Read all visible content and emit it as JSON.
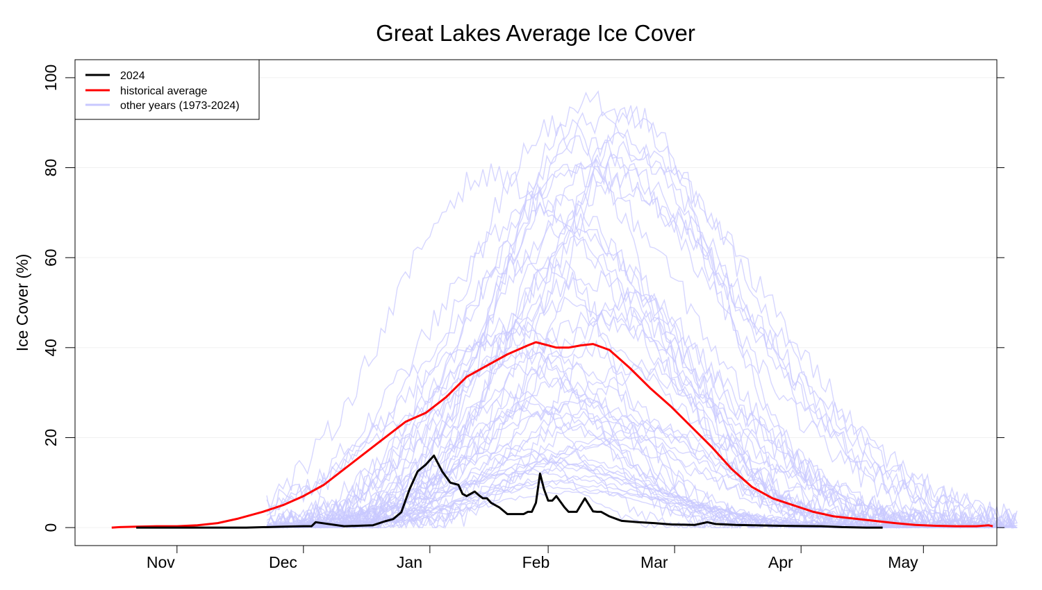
{
  "chart_data": {
    "type": "line",
    "title": "Great Lakes Average Ice Cover",
    "xlabel": "",
    "ylabel": "Ice Cover (%)",
    "xlim": [
      "Oct 20",
      "Jun 2"
    ],
    "ylim": [
      -4,
      104
    ],
    "yticks": [
      0,
      20,
      40,
      60,
      80,
      100
    ],
    "x_tick_labels": [
      "Nov",
      "Dec",
      "Jan",
      "Feb",
      "Mar",
      "Apr",
      "May"
    ],
    "x_tick_marks": [
      "Nov 15",
      "Dec 15",
      "Jan 15",
      "Feb 13",
      "Mar 15",
      "Apr 15",
      "May 15"
    ],
    "grid": true,
    "legend": {
      "position": "top-left",
      "entries": [
        {
          "label": "2024",
          "color": "#000000"
        },
        {
          "label": "historical average",
          "color": "#ff0000"
        },
        {
          "label": "other years (1973-2024)",
          "color": "#c8c8ff"
        }
      ]
    },
    "series": [
      {
        "name": "2024",
        "color": "#000000",
        "x": [
          "Nov 5",
          "Nov 10",
          "Nov 20",
          "Dec 1",
          "Dec 10",
          "Dec 15",
          "Dec 17",
          "Dec 18",
          "Dec 25",
          "Jan 1",
          "Jan 4",
          "Jan 6",
          "Jan 8",
          "Jan 10",
          "Jan 12",
          "Jan 14",
          "Jan 16",
          "Jan 18",
          "Jan 20",
          "Jan 22",
          "Jan 23",
          "Jan 24",
          "Jan 26",
          "Jan 27",
          "Jan 28",
          "Jan 29",
          "Jan 30",
          "Feb 1",
          "Feb 3",
          "Feb 5",
          "Feb 7",
          "Feb 8",
          "Feb 9",
          "Feb 10",
          "Feb 11",
          "Feb 12",
          "Feb 13",
          "Feb 14",
          "Feb 15",
          "Feb 17",
          "Feb 18",
          "Feb 20",
          "Feb 22",
          "Feb 24",
          "Feb 25",
          "Feb 26",
          "Feb 28",
          "Mar 2",
          "Mar 6",
          "Mar 10",
          "Mar 14",
          "Mar 20",
          "Mar 23",
          "Mar 25",
          "Mar 30",
          "Apr 10",
          "Apr 20",
          "Apr 25",
          "May 1",
          "May 5"
        ],
        "values": [
          0,
          0,
          0,
          0,
          0.2,
          0.3,
          0.3,
          1.2,
          0.3,
          0.5,
          1.4,
          1.9,
          3.4,
          8.5,
          12.5,
          14,
          16,
          12.5,
          10,
          9.5,
          7.5,
          7,
          8,
          7.2,
          6.5,
          6.5,
          5.5,
          4.5,
          3,
          3,
          3,
          3.5,
          3.5,
          5.5,
          12,
          8.5,
          6,
          6,
          7,
          4.5,
          3.5,
          3.5,
          6.5,
          3.6,
          3.5,
          3.5,
          2.5,
          1.5,
          1.2,
          1.0,
          0.7,
          0.6,
          1.2,
          0.8,
          0.6,
          0.4,
          0.3,
          0.1,
          0,
          0
        ]
      },
      {
        "name": "historical average",
        "color": "#ff0000",
        "x": [
          "Oct 29",
          "Nov 1",
          "Nov 5",
          "Nov 10",
          "Nov 15",
          "Nov 20",
          "Nov 25",
          "Nov 30",
          "Dec 5",
          "Dec 10",
          "Dec 15",
          "Dec 20",
          "Dec 25",
          "Dec 30",
          "Jan 4",
          "Jan 9",
          "Jan 14",
          "Jan 19",
          "Jan 24",
          "Jan 29",
          "Feb 3",
          "Feb 8",
          "Feb 10",
          "Feb 13",
          "Feb 15",
          "Feb 18",
          "Feb 21",
          "Feb 24",
          "Feb 28",
          "Mar 4",
          "Mar 9",
          "Mar 14",
          "Mar 19",
          "Mar 24",
          "Mar 29",
          "Apr 3",
          "Apr 8",
          "Apr 13",
          "Apr 18",
          "Apr 23",
          "Apr 28",
          "May 3",
          "May 8",
          "May 13",
          "May 18",
          "May 23",
          "May 28",
          "May 31",
          "Jun 1"
        ],
        "values": [
          0,
          0.1,
          0.2,
          0.3,
          0.3,
          0.5,
          1,
          2,
          3.5,
          5,
          7,
          9.5,
          13,
          16.5,
          20,
          23.5,
          25.5,
          29,
          33.5,
          36,
          38.5,
          40.5,
          41.2,
          40.5,
          40,
          40,
          40.5,
          40.8,
          39.5,
          35.5,
          31,
          27,
          22.5,
          18,
          13,
          9,
          6.5,
          5,
          3.5,
          2.5,
          2,
          1.5,
          1,
          0.6,
          0.4,
          0.3,
          0.3,
          0.5,
          0.3
        ]
      },
      {
        "name": "other years (1973-2024)",
        "color": "#c8c8ff",
        "note": "52 additional yearly traces, each rising from ~0% in late November to a peak between ~5% and ~95% around late January to early March, then declining to ~0% by April–May; highest peak ~95% near Feb 18."
      }
    ]
  }
}
